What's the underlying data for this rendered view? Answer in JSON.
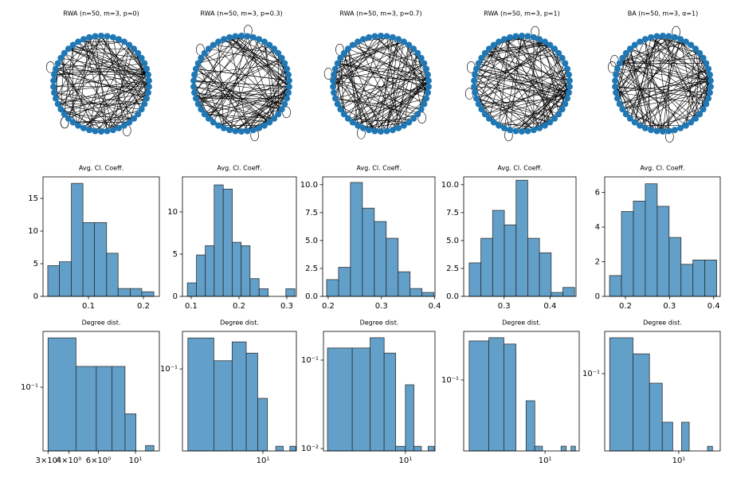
{
  "chart_data": [
    {
      "type": "network",
      "title": "RWA (n=50, m=3, p=0)",
      "nodes": 50,
      "color": "#1f77b4"
    },
    {
      "type": "network",
      "title": "RWA (n=50, m=3, p=0.3)",
      "nodes": 50,
      "color": "#1f77b4"
    },
    {
      "type": "network",
      "title": "RWA (n=50, m=3, p=0.7)",
      "nodes": 50,
      "color": "#1f77b4"
    },
    {
      "type": "network",
      "title": "RWA (n=50, m=3, p=1)",
      "nodes": 50,
      "color": "#1f77b4"
    },
    {
      "type": "network",
      "title": "BA (n=50, m=3, α=1)",
      "nodes": 50,
      "color": "#1f77b4"
    },
    {
      "type": "histogram",
      "title": "Avg. Cl. Coeff.",
      "color": "#1f77b4",
      "alpha": 0.7,
      "bins": [
        0.026,
        0.047,
        0.069,
        0.09,
        0.111,
        0.133,
        0.154,
        0.176,
        0.197,
        0.219
      ],
      "values": [
        4.7,
        5.3,
        17.3,
        11.3,
        11.3,
        6.6,
        1.2,
        1.2,
        0.7
      ],
      "xlim": [
        0.0174,
        0.229
      ],
      "ylim": [
        0,
        18.3
      ],
      "xticks": [
        0.1,
        0.2
      ],
      "yticks": [
        0,
        5,
        10,
        15
      ]
    },
    {
      "type": "histogram",
      "title": "Avg. Cl. Coeff.",
      "color": "#1f77b4",
      "alpha": 0.7,
      "bins": [
        0.092,
        0.111,
        0.1295,
        0.148,
        0.167,
        0.186,
        0.2045,
        0.223,
        0.242,
        0.261,
        0.2795,
        0.298,
        0.317
      ],
      "values": [
        1.6,
        4.9,
        6.0,
        13.2,
        12.7,
        6.4,
        6.0,
        2.1,
        0.9,
        0,
        0,
        0.9
      ],
      "xlim": [
        0.0817,
        0.32
      ],
      "ylim": [
        0,
        14.15
      ],
      "xticks": [
        0.1,
        0.2,
        0.3
      ],
      "yticks": [
        0,
        5,
        10
      ]
    },
    {
      "type": "histogram",
      "title": "Avg. Cl. Coeff.",
      "color": "#1f77b4",
      "alpha": 0.7,
      "bins": [
        0.197,
        0.2194,
        0.2418,
        0.2642,
        0.2866,
        0.309,
        0.3314,
        0.3538,
        0.3762,
        0.3986
      ],
      "values": [
        1.5,
        2.6,
        10.2,
        7.9,
        6.7,
        5.2,
        2.2,
        0.7,
        0.35
      ],
      "xlim": [
        0.1896,
        0.4007
      ],
      "ylim": [
        0,
        10.7
      ],
      "xticks": [
        0.2,
        0.3,
        0.4
      ],
      "yticks": [
        {
          "value": 0,
          "label": "0.0"
        },
        2.5,
        {
          "value": 5,
          "label": "5.0"
        },
        7.5,
        {
          "value": 10,
          "label": "10.0"
        }
      ]
    },
    {
      "type": "histogram",
      "title": "Avg. Cl. Coeff.",
      "color": "#1f77b4",
      "alpha": 0.7,
      "bins": [
        0.224,
        0.2495,
        0.275,
        0.3005,
        0.326,
        0.3515,
        0.377,
        0.4025,
        0.428,
        0.4535
      ],
      "values": [
        3.0,
        5.2,
        7.7,
        6.4,
        10.4,
        5.2,
        3.9,
        0.35,
        0.8
      ],
      "xlim": [
        0.212,
        0.4566
      ],
      "ylim": [
        0,
        10.7
      ],
      "xticks": [
        0.3,
        0.4
      ],
      "yticks": [
        {
          "value": 0,
          "label": "0.0"
        },
        2.5,
        {
          "value": 5,
          "label": "5.0"
        },
        7.5,
        {
          "value": 10,
          "label": "10.0"
        }
      ]
    },
    {
      "type": "histogram",
      "title": "Avg. Cl. Coeff.",
      "color": "#1f77b4",
      "alpha": 0.7,
      "bins": [
        0.164,
        0.191,
        0.218,
        0.245,
        0.272,
        0.299,
        0.326,
        0.353,
        0.38,
        0.407
      ],
      "values": [
        1.2,
        4.9,
        5.5,
        6.5,
        5.2,
        3.4,
        1.85,
        2.1,
        2.1
      ],
      "xlim": [
        0.153,
        0.415
      ],
      "ylim": [
        0,
        6.9
      ],
      "xticks": [
        0.2,
        0.3,
        0.4
      ],
      "yticks": [
        0,
        2,
        4,
        6
      ]
    },
    {
      "type": "histogram",
      "title": "Degree dist.",
      "color": "#1f77b4",
      "alpha": 0.7,
      "xscale": "log",
      "yscale": "log",
      "bins": [
        3,
        4.41,
        5.83,
        7.24,
        8.66,
        10.07,
        11.49,
        12.9
      ],
      "values": [
        0.204,
        0.135,
        0.135,
        0.135,
        0.068,
        0,
        0.043
      ],
      "xlim": [
        2.8,
        13.9
      ],
      "ylim": [
        0.0398,
        0.224
      ],
      "xticks": [
        {
          "value": 3,
          "label": "3×10⁰"
        },
        {
          "value": 4,
          "label": "4×10⁰"
        },
        {
          "value": 6,
          "label": "6×10⁰"
        },
        {
          "value": 10,
          "label": "10¹"
        }
      ],
      "yticks": [
        {
          "value": 0.1,
          "label": "10⁻¹"
        }
      ]
    },
    {
      "type": "histogram",
      "title": "Degree dist.",
      "color": "#1f77b4",
      "alpha": 0.7,
      "xscale": "log",
      "yscale": "log",
      "bins": [
        3,
        4.55,
        6.1,
        7.65,
        9.2,
        10.75,
        12.3,
        13.85,
        15.4,
        16.95
      ],
      "values": [
        0.175,
        0.116,
        0.163,
        0.133,
        0.0587,
        0,
        0.0247,
        0,
        0.0247
      ],
      "xlim": [
        2.75,
        17.1
      ],
      "ylim": [
        0.0227,
        0.197
      ],
      "xticks": [
        {
          "value": 10,
          "label": "10¹"
        }
      ],
      "yticks": [
        {
          "value": 0.1,
          "label": "10⁻¹"
        }
      ]
    },
    {
      "type": "histogram",
      "title": "Degree dist.",
      "color": "#1f77b4",
      "alpha": 0.7,
      "xscale": "log",
      "yscale": "log",
      "bins": [
        3,
        4.4,
        5.8,
        7.2,
        8.6,
        10,
        11.4,
        12.8,
        14.2,
        15.6
      ],
      "values": [
        0.137,
        0.137,
        0.179,
        0.12,
        0.0106,
        0.0526,
        0.0106,
        0,
        0.0106
      ],
      "xlim": [
        2.82,
        15.8
      ],
      "ylim": [
        0.0094,
        0.211
      ],
      "xticks": [
        {
          "value": 10,
          "label": "10¹"
        }
      ],
      "yticks": [
        {
          "value": 0.1,
          "label": "10⁻¹"
        },
        {
          "value": 0.01,
          "label": "10⁻²"
        }
      ]
    },
    {
      "type": "histogram",
      "title": "Degree dist.",
      "color": "#1f77b4",
      "alpha": 0.7,
      "xscale": "log",
      "yscale": "log",
      "bins": [
        3,
        4.1,
        5.2,
        6.3,
        7.4,
        8.5,
        9.6,
        10.7,
        11.8,
        12.9,
        14,
        15.1,
        16.2
      ],
      "values": [
        0.194,
        0.205,
        0.184,
        0,
        0.0703,
        0.0325,
        0,
        0,
        0,
        0.0325,
        0,
        0.0325
      ],
      "xlim": [
        2.75,
        17.2
      ],
      "ylim": [
        0.03,
        0.228
      ],
      "xticks": [
        {
          "value": 10,
          "label": "10¹"
        }
      ],
      "yticks": [
        {
          "value": 0.1,
          "label": "10⁻¹"
        }
      ]
    },
    {
      "type": "histogram",
      "title": "Degree dist.",
      "color": "#1f77b4",
      "alpha": 0.7,
      "xscale": "log",
      "yscale": "log",
      "bins": [
        3,
        4.5,
        6,
        7.5,
        9,
        10.5,
        12,
        13.5,
        15,
        16.5,
        18
      ],
      "values": [
        0.184,
        0.14,
        0.085,
        0.0438,
        0,
        0.0438,
        0,
        0,
        0,
        0.0291
      ],
      "xlim": [
        2.75,
        20.6
      ],
      "ylim": [
        0.0269,
        0.205
      ],
      "xticks": [
        {
          "value": 10,
          "label": "10¹"
        }
      ],
      "yticks": [
        {
          "value": 0.1,
          "label": "10⁻¹"
        }
      ]
    }
  ]
}
